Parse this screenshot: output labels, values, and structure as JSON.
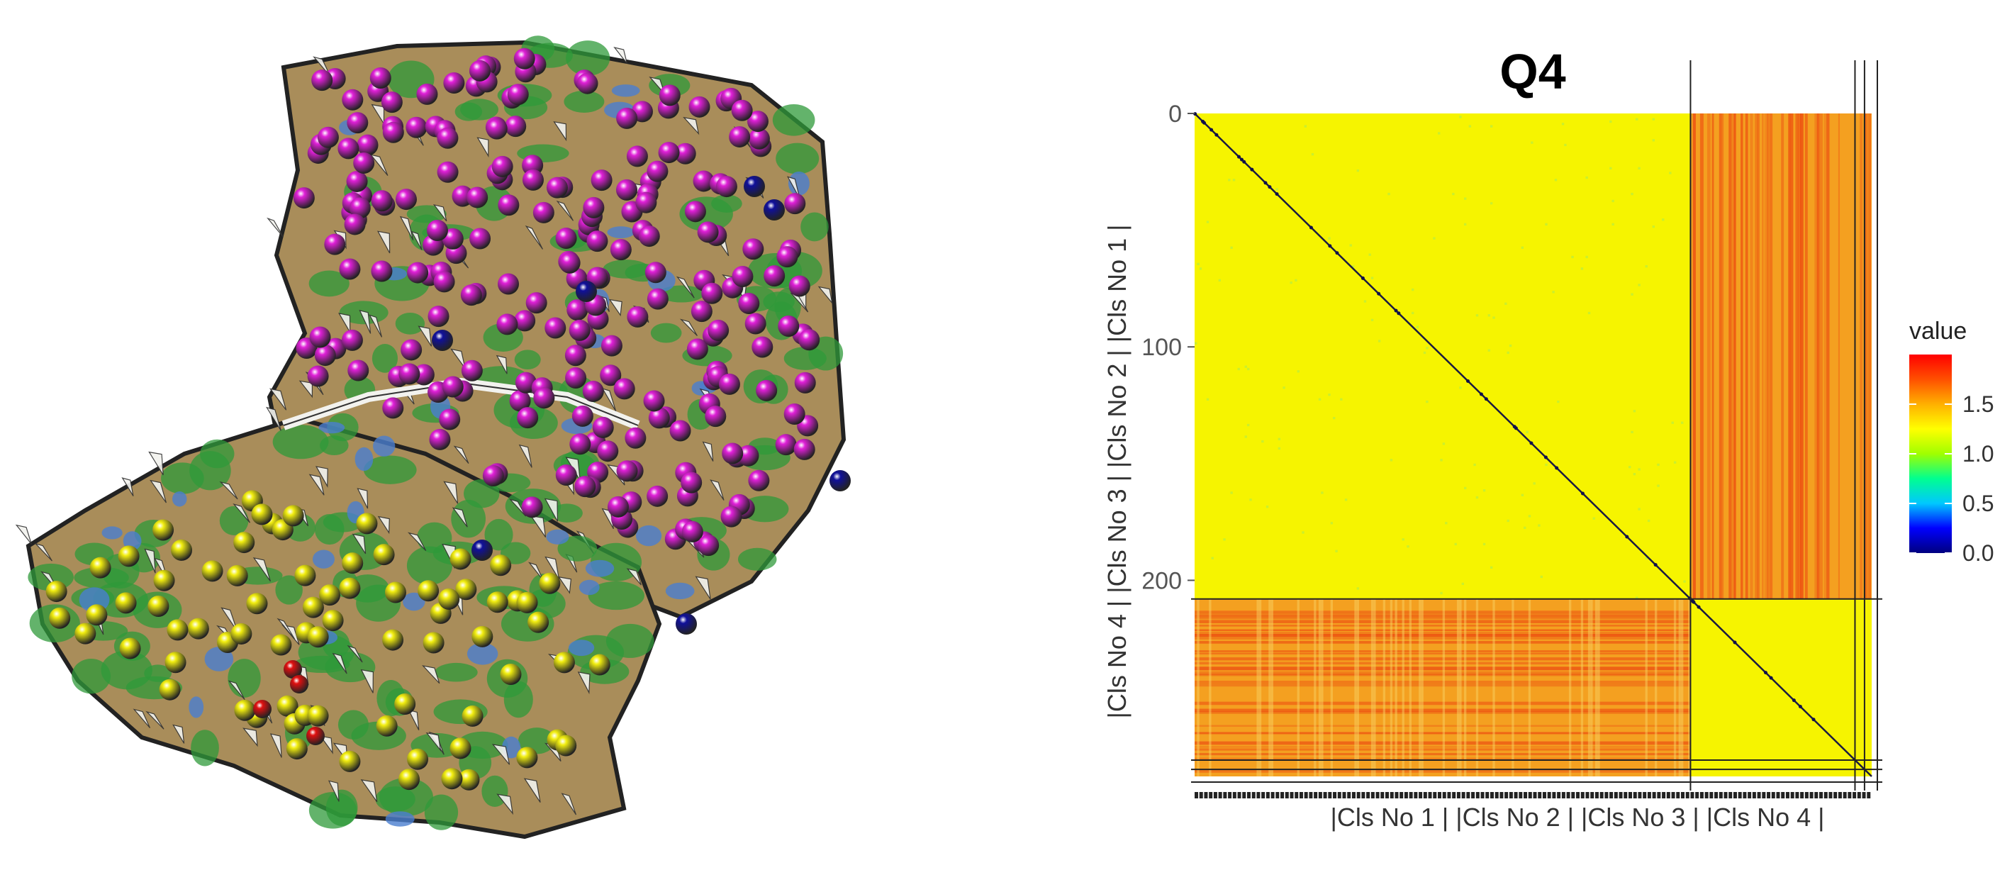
{
  "left_panel": {
    "description_free": true,
    "marker_colors": {
      "magenta": "#e020d8",
      "yellow": "#f2ee10",
      "blue": "#10109a",
      "red": "#e01010"
    },
    "terrain_colors": {
      "brown": "#a98d5a",
      "green": "#2f9a3a",
      "blue": "#4a7ed0",
      "white": "#f2f2ee"
    }
  },
  "chart_data": {
    "type": "heatmap",
    "title": "Q4",
    "xlabel": "|Cls No 1 | |Cls No 2 | |Cls No 3 | |Cls No 4 |",
    "ylabel": "|Cls No 4 | |Cls No 3 | |Cls No 2 | |Cls No 1 |",
    "y_ticks": [
      0,
      100,
      200
    ],
    "n": 284,
    "cluster_boundaries": [
      208,
      277,
      281
    ],
    "blocks": [
      {
        "rows": "cluster 1 (0-208)",
        "cols": "cluster 1 (0-208)",
        "value": 1.0
      },
      {
        "rows": "cluster 1 (0-208)",
        "cols": "clusters 2-4 (208-284)",
        "value": 1.6
      },
      {
        "rows": "clusters 2-4 (208-284)",
        "cols": "cluster 1 (0-208)",
        "value": 1.6
      },
      {
        "rows": "clusters 2-4 (208-284)",
        "cols": "clusters 2-4 (208-284)",
        "value": 1.0
      }
    ],
    "diagonal_value": 0.0,
    "legend": {
      "title": "value",
      "ticks": [
        "0.0",
        "0.5",
        "1.0",
        "1.5"
      ],
      "range": [
        0,
        2
      ],
      "colors": [
        "#00007f",
        "#0000ff",
        "#00c8ff",
        "#00ff90",
        "#a0ff00",
        "#ffff00",
        "#ffb000",
        "#ff5000",
        "#ff0000"
      ]
    },
    "colors": {
      "low_block": "#f6f400",
      "high_block": "#f4a020",
      "high_block_stripe": "#ec4a10",
      "grid_lines": "#222222"
    }
  }
}
